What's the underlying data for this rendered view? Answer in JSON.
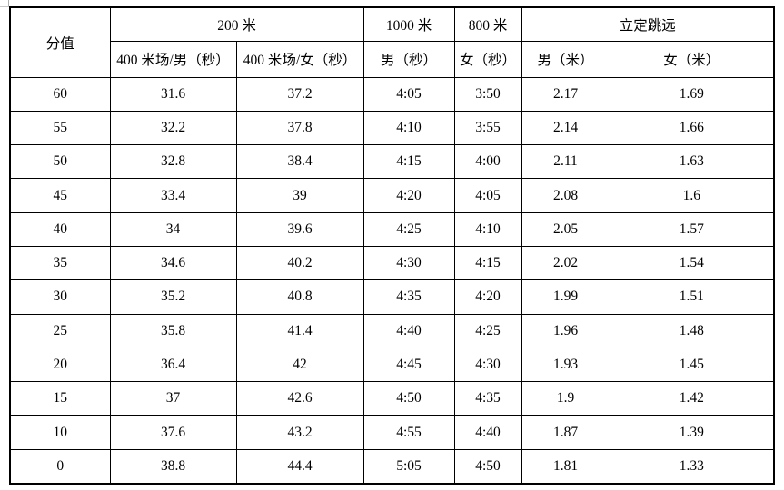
{
  "table": {
    "score_header": "分值",
    "group_headers": [
      {
        "label": "200 米"
      },
      {
        "label": "1000 米"
      },
      {
        "label": "800 米"
      },
      {
        "label": "立定跳远"
      }
    ],
    "sub_headers": [
      "400 米场/男（秒）",
      "400 米场/女（秒）",
      "男（秒）",
      "女（秒）",
      "男（米）",
      "女（米）"
    ],
    "rows": [
      {
        "score": "60",
        "cells": [
          "31.6",
          "37.2",
          "4:05",
          "3:50",
          "2.17",
          "1.69"
        ]
      },
      {
        "score": "55",
        "cells": [
          "32.2",
          "37.8",
          "4:10",
          "3:55",
          "2.14",
          "1.66"
        ]
      },
      {
        "score": "50",
        "cells": [
          "32.8",
          "38.4",
          "4:15",
          "4:00",
          "2.11",
          "1.63"
        ]
      },
      {
        "score": "45",
        "cells": [
          "33.4",
          "39",
          "4:20",
          "4:05",
          "2.08",
          "1.6"
        ]
      },
      {
        "score": "40",
        "cells": [
          "34",
          "39.6",
          "4:25",
          "4:10",
          "2.05",
          "1.57"
        ]
      },
      {
        "score": "35",
        "cells": [
          "34.6",
          "40.2",
          "4:30",
          "4:15",
          "2.02",
          "1.54"
        ]
      },
      {
        "score": "30",
        "cells": [
          "35.2",
          "40.8",
          "4:35",
          "4:20",
          "1.99",
          "1.51"
        ]
      },
      {
        "score": "25",
        "cells": [
          "35.8",
          "41.4",
          "4:40",
          "4:25",
          "1.96",
          "1.48"
        ]
      },
      {
        "score": "20",
        "cells": [
          "36.4",
          "42",
          "4:45",
          "4:30",
          "1.93",
          "1.45"
        ]
      },
      {
        "score": "15",
        "cells": [
          "37",
          "42.6",
          "4:50",
          "4:35",
          "1.9",
          "1.42"
        ]
      },
      {
        "score": "10",
        "cells": [
          "37.6",
          "43.2",
          "4:55",
          "4:40",
          "1.87",
          "1.39"
        ]
      },
      {
        "score": "0",
        "cells": [
          "38.8",
          "44.4",
          "5:05",
          "4:50",
          "1.81",
          "1.33"
        ]
      }
    ],
    "colors": {
      "border": "#000000",
      "text": "#000000",
      "background": "#ffffff"
    }
  }
}
